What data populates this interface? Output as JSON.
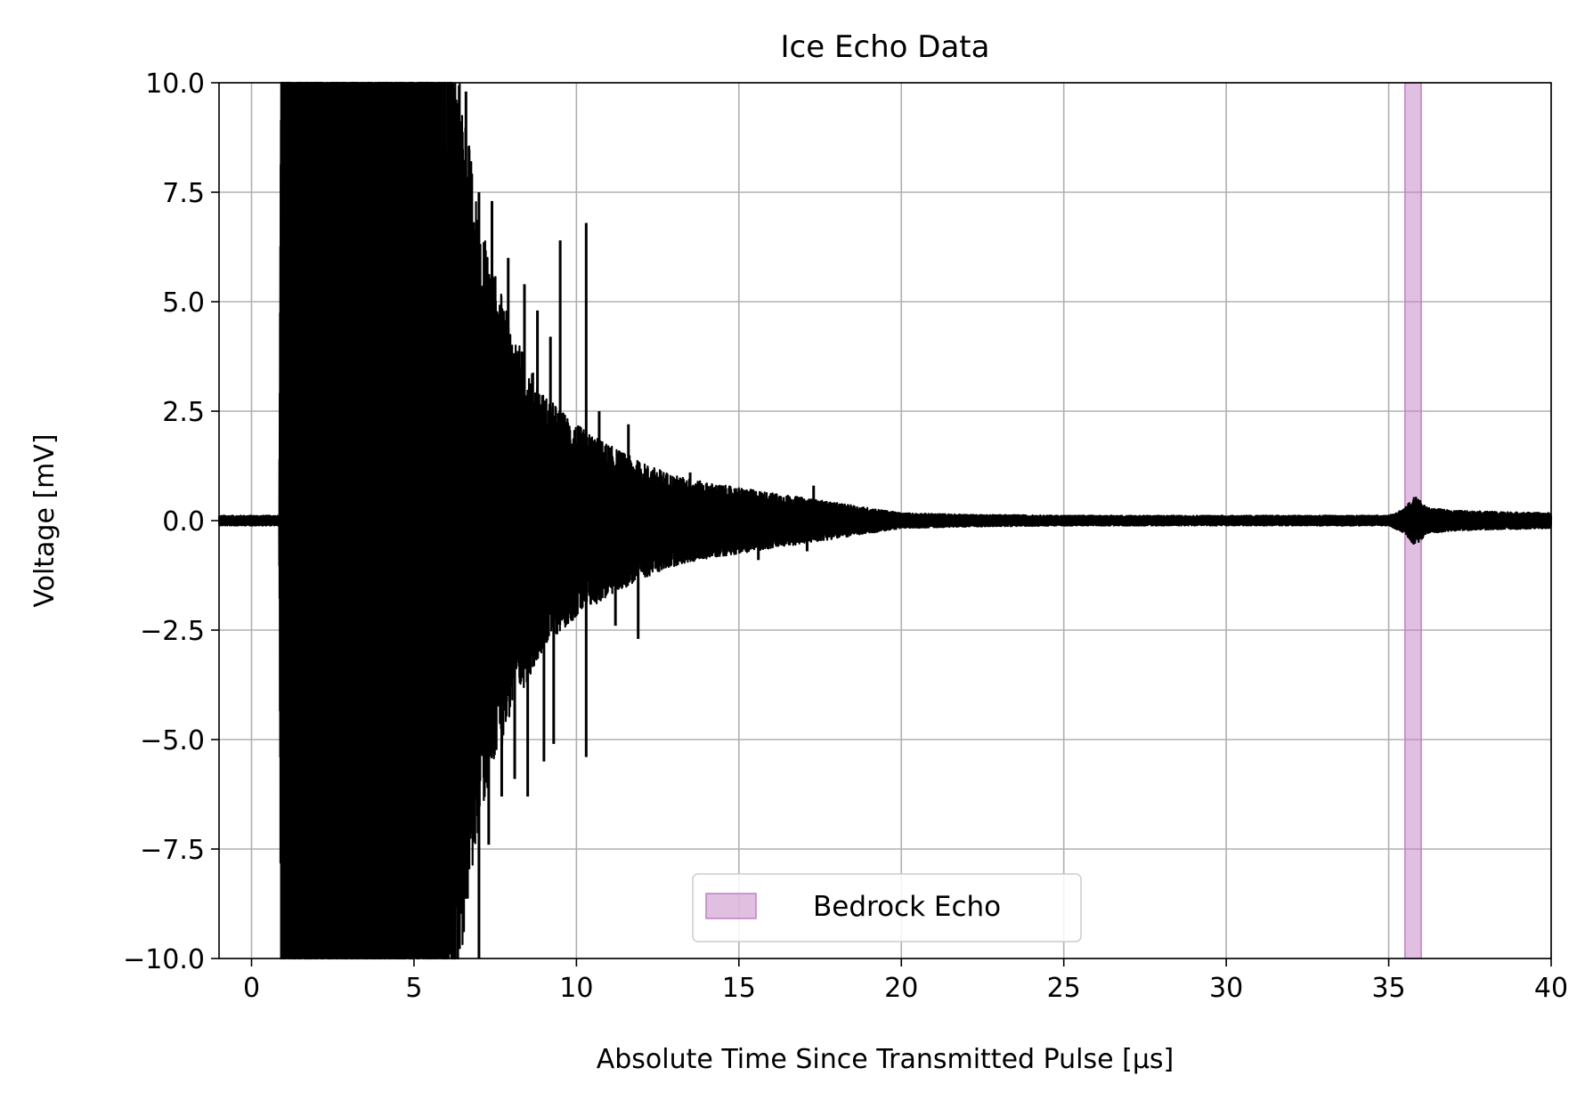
{
  "chart_data": {
    "type": "line",
    "title": "Ice Echo Data",
    "xlabel": "Absolute Time Since Transmitted Pulse [μs]",
    "ylabel": "Voltage [mV]",
    "xlim": [
      -1,
      40
    ],
    "ylim": [
      -10,
      10
    ],
    "x_ticks": [
      0,
      5,
      10,
      15,
      20,
      25,
      30,
      35,
      40
    ],
    "x_tick_labels": [
      "0",
      "5",
      "10",
      "15",
      "20",
      "25",
      "30",
      "35",
      "40"
    ],
    "y_ticks": [
      -10,
      -7.5,
      -5,
      -2.5,
      0,
      2.5,
      5,
      7.5,
      10
    ],
    "y_tick_labels": [
      "−10.0",
      "−7.5",
      "−5.0",
      "−2.5",
      "0.0",
      "2.5",
      "5.0",
      "7.5",
      "10.0"
    ],
    "grid": true,
    "legend_position": "lower center",
    "series": [
      {
        "color": "#000000",
        "envelope": {
          "t": [
            -1,
            0.85,
            0.9,
            3,
            6,
            6.5,
            7,
            8,
            9,
            10,
            11,
            12,
            13,
            14,
            15,
            16,
            17,
            18,
            19,
            20,
            22,
            25,
            30,
            35,
            35.5,
            35.8,
            36.2,
            37,
            38,
            40
          ],
          "amplitude": [
            0.1,
            0.1,
            10,
            10,
            10,
            8.5,
            6,
            3.8,
            2.5,
            1.9,
            1.5,
            1.15,
            0.9,
            0.75,
            0.65,
            0.55,
            0.45,
            0.35,
            0.25,
            0.15,
            0.12,
            0.1,
            0.1,
            0.1,
            0.25,
            0.5,
            0.25,
            0.2,
            0.18,
            0.15
          ]
        },
        "spikes": [
          {
            "t": 5.8,
            "v": 10
          },
          {
            "t": 6.2,
            "v": 10
          },
          {
            "t": 6.6,
            "v": 9.8
          },
          {
            "t": 7.0,
            "v": 7.5
          },
          {
            "t": 7.4,
            "v": 7.3
          },
          {
            "t": 7.9,
            "v": 6.0
          },
          {
            "t": 8.4,
            "v": 5.4
          },
          {
            "t": 8.8,
            "v": 4.8
          },
          {
            "t": 9.2,
            "v": 4.2
          },
          {
            "t": 9.5,
            "v": 6.4
          },
          {
            "t": 10.3,
            "v": 6.8
          },
          {
            "t": 10.7,
            "v": 2.5
          },
          {
            "t": 11.6,
            "v": 2.2
          },
          {
            "t": 13.5,
            "v": 1.1
          },
          {
            "t": 17.3,
            "v": 0.8
          },
          {
            "t": 7.0,
            "v": -10
          },
          {
            "t": 7.3,
            "v": -7.4
          },
          {
            "t": 7.7,
            "v": -6.3
          },
          {
            "t": 8.1,
            "v": -5.9
          },
          {
            "t": 8.5,
            "v": -6.3
          },
          {
            "t": 9.0,
            "v": -5.5
          },
          {
            "t": 9.3,
            "v": -5.1
          },
          {
            "t": 10.3,
            "v": -5.4
          },
          {
            "t": 11.2,
            "v": -2.4
          },
          {
            "t": 11.9,
            "v": -2.7
          },
          {
            "t": 15.6,
            "v": -0.9
          },
          {
            "t": 17.1,
            "v": -0.7
          }
        ]
      }
    ],
    "spans": [
      {
        "name": "Bedrock Echo",
        "x_start": 35.5,
        "x_end": 36.0,
        "color": "#c280c4",
        "alpha": 0.5
      }
    ]
  }
}
